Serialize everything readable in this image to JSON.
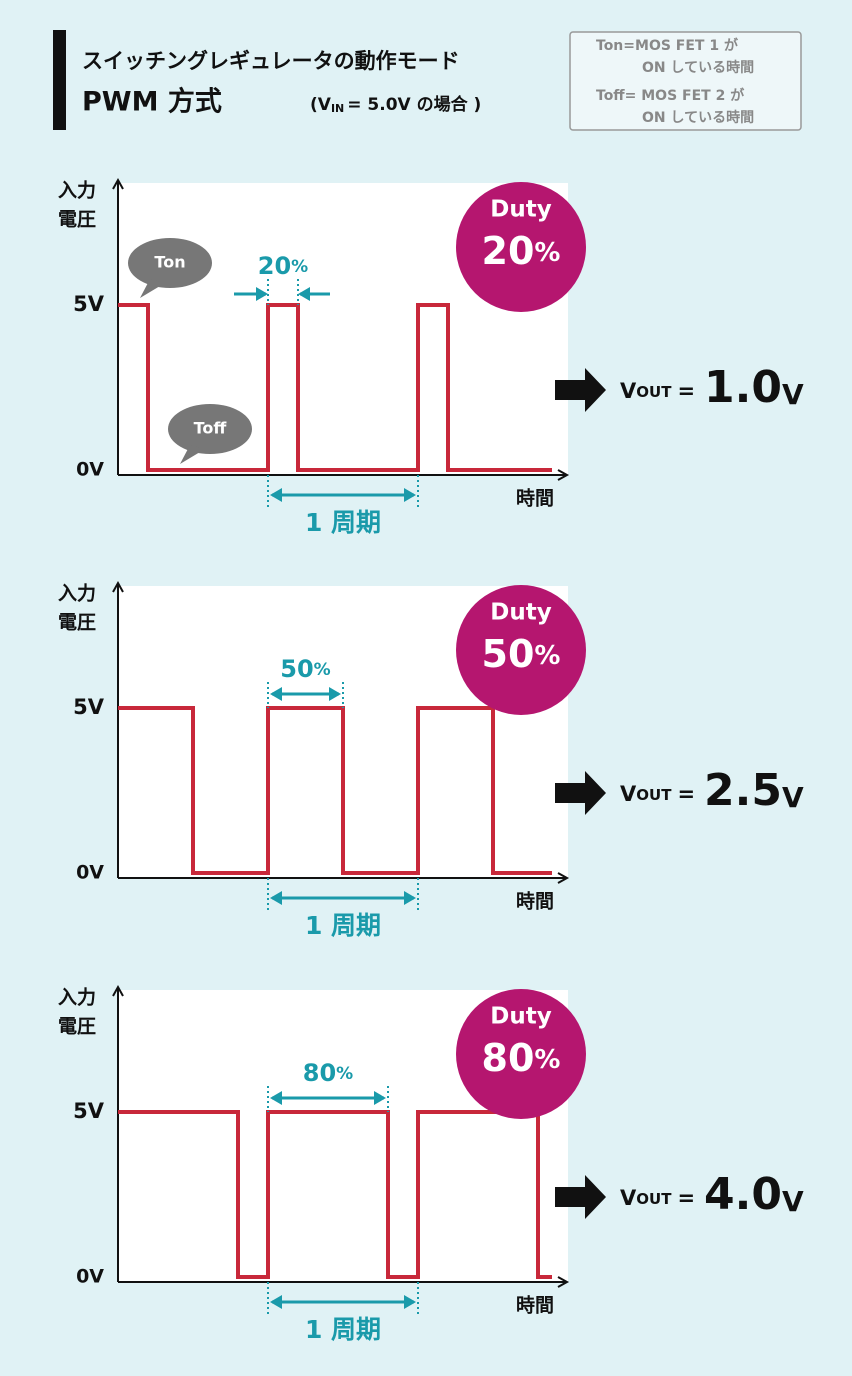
{
  "header": {
    "title_line1": "スイッチングレギュレータの動作モード",
    "title_line2": "PWM 方式",
    "condition": {
      "open": "(V",
      "sub": "IN",
      "rest": "= 5.0V の場合 )"
    }
  },
  "legend": {
    "ton": [
      "Ton=MOS FET 1 が",
      "ON している時間"
    ],
    "toff": [
      "Toff= MOS FET 2 が",
      "ON している時間"
    ]
  },
  "axes": {
    "y_label": [
      "入力",
      "電圧"
    ],
    "x_label": "時間",
    "high": "5V",
    "low": "0V",
    "period": "1 周期"
  },
  "vout_label": {
    "main": "V",
    "sub": "OUT",
    "eq": "="
  },
  "duty_label": "Duty",
  "bubbles": {
    "ton": "Ton",
    "toff": "Toff"
  },
  "panels": [
    {
      "duty": {
        "value": 20,
        "unit": "%"
      },
      "vout": {
        "value": "1.0",
        "unit": "V"
      }
    },
    {
      "duty": {
        "value": 50,
        "unit": "%"
      },
      "vout": {
        "value": "2.5",
        "unit": "V"
      }
    },
    {
      "duty": {
        "value": 80,
        "unit": "%"
      },
      "vout": {
        "value": "4.0",
        "unit": "V"
      }
    }
  ]
}
